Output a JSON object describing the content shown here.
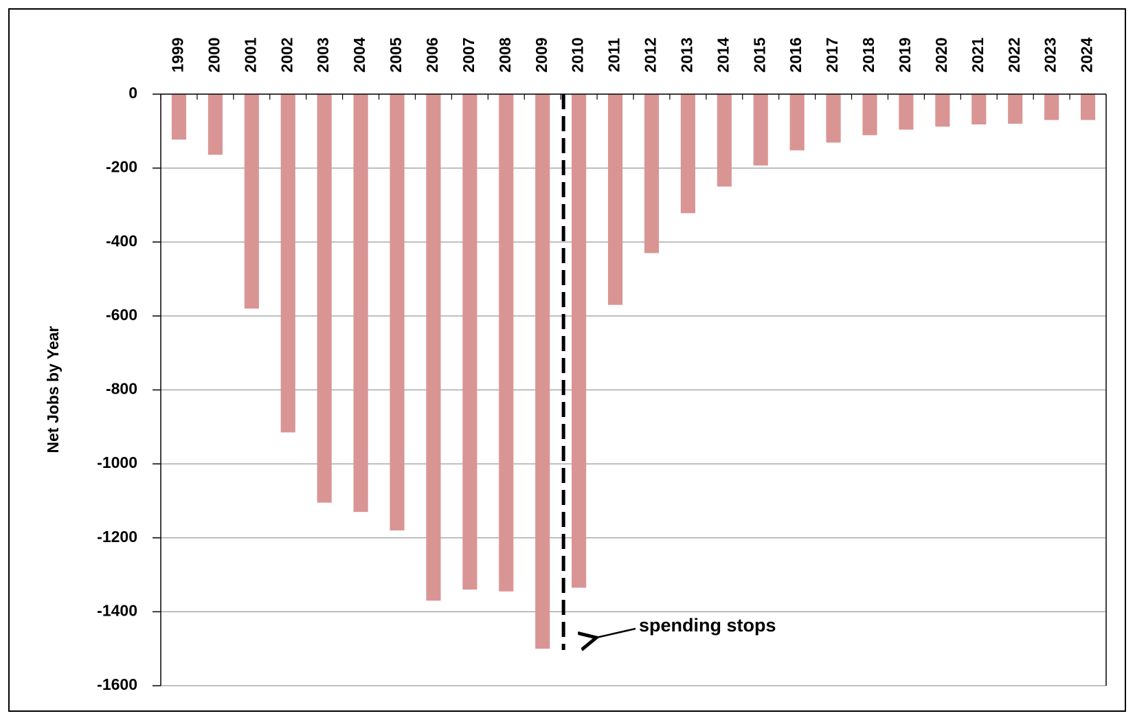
{
  "chart_data": {
    "type": "bar",
    "categories": [
      "1999",
      "2000",
      "2001",
      "2002",
      "2003",
      "2004",
      "2005",
      "2006",
      "2007",
      "2008",
      "2009",
      "2010",
      "2011",
      "2012",
      "2013",
      "2014",
      "2015",
      "2016",
      "2017",
      "2018",
      "2019",
      "2020",
      "2021",
      "2022",
      "2023",
      "2024"
    ],
    "values": [
      -123,
      -164,
      -580,
      -915,
      -1105,
      -1130,
      -1180,
      -1370,
      -1340,
      -1345,
      -1500,
      -1335,
      -570,
      -430,
      -322,
      -250,
      -193,
      -152,
      -131,
      -111,
      -96,
      -88,
      -82,
      -80,
      -70,
      -70
    ],
    "color": "#d99594",
    "y_label": "Net Jobs by Year",
    "ylim": [
      -1600,
      0
    ],
    "yticks": [
      0,
      -200,
      -400,
      -600,
      -800,
      -1000,
      -1200,
      -1400,
      -1600
    ],
    "grid": true,
    "annotation": "spending stops"
  }
}
